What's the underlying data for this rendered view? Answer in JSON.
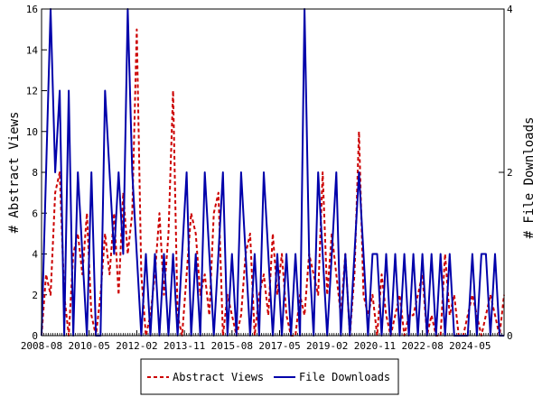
{
  "chart_data": {
    "type": "line",
    "grid": false,
    "legend_placement": "bottom-center",
    "x_range": [
      "2008-08",
      "2025-08"
    ],
    "x_ticks": [
      "2008-08",
      "2010-05",
      "2012-02",
      "2013-11",
      "2015-08",
      "2017-05",
      "2019-02",
      "2020-11",
      "2022-08",
      "2024-05"
    ],
    "ylabel": "# Abstract Views",
    "y2label": "# File Downloads",
    "ylim": [
      0,
      16
    ],
    "y2lim": [
      0,
      4
    ],
    "y_ticks": [
      0,
      2,
      4,
      6,
      8,
      10,
      12,
      14,
      16
    ],
    "y2_ticks": [
      0,
      2,
      4
    ],
    "series": [
      {
        "name": "Abstract Views",
        "axis": "left",
        "color": "#cc0000",
        "style": "dashed",
        "x": [
          "2008-08",
          "2008-10",
          "2008-12",
          "2009-02",
          "2009-04",
          "2009-06",
          "2009-08",
          "2009-10",
          "2009-12",
          "2010-02",
          "2010-04",
          "2010-06",
          "2010-08",
          "2010-10",
          "2010-12",
          "2011-02",
          "2011-04",
          "2011-06",
          "2011-08",
          "2011-10",
          "2011-12",
          "2012-02",
          "2012-04",
          "2012-06",
          "2012-08",
          "2012-10",
          "2012-12",
          "2013-02",
          "2013-04",
          "2013-06",
          "2013-08",
          "2013-10",
          "2013-12",
          "2014-02",
          "2014-04",
          "2014-06",
          "2014-08",
          "2014-10",
          "2014-12",
          "2015-02",
          "2015-04",
          "2015-06",
          "2015-08",
          "2015-10",
          "2015-12",
          "2016-02",
          "2016-04",
          "2016-06",
          "2016-08",
          "2016-10",
          "2016-12",
          "2017-02",
          "2017-04",
          "2017-06",
          "2017-08",
          "2017-10",
          "2017-12",
          "2018-02",
          "2018-04",
          "2018-06",
          "2018-08",
          "2018-10",
          "2018-12",
          "2019-02",
          "2019-04",
          "2019-06",
          "2019-08",
          "2019-10",
          "2019-12",
          "2020-02",
          "2020-04",
          "2020-06",
          "2020-08",
          "2020-10",
          "2020-12",
          "2021-02",
          "2021-04",
          "2021-06",
          "2021-08",
          "2021-10",
          "2021-12",
          "2022-02",
          "2022-04",
          "2022-06",
          "2022-08",
          "2022-10",
          "2022-12",
          "2023-02",
          "2023-04",
          "2023-06",
          "2023-08",
          "2023-10",
          "2023-12",
          "2024-02",
          "2024-04",
          "2024-06",
          "2024-08",
          "2024-10",
          "2024-12",
          "2025-02",
          "2025-04",
          "2025-06",
          "2025-08"
        ],
        "values": [
          0,
          3,
          2,
          7,
          8,
          2,
          0,
          4,
          5,
          3,
          6,
          1,
          0,
          2,
          5,
          3,
          6,
          2,
          7,
          4,
          6,
          15,
          3,
          0,
          1,
          3,
          6,
          2,
          5,
          12,
          1,
          0,
          3,
          6,
          5,
          2,
          3,
          1,
          6,
          7,
          0,
          2,
          1,
          0,
          1,
          4,
          5,
          0,
          2,
          3,
          1,
          5,
          2,
          4,
          1,
          0,
          0,
          2,
          1,
          4,
          3,
          2,
          8,
          2,
          5,
          3,
          1,
          4,
          0,
          3,
          10,
          2,
          1,
          2,
          0,
          3,
          1,
          0,
          1,
          2,
          0,
          1,
          1,
          2,
          3,
          0,
          1,
          0,
          0,
          4,
          1,
          2,
          0,
          0,
          1,
          2,
          1,
          0,
          1,
          2,
          1,
          0,
          2
        ]
      },
      {
        "name": "File Downloads",
        "axis": "right",
        "color": "#0000aa",
        "style": "solid",
        "x": [
          "2008-08",
          "2008-10",
          "2008-12",
          "2009-02",
          "2009-04",
          "2009-06",
          "2009-08",
          "2009-10",
          "2009-12",
          "2010-02",
          "2010-04",
          "2010-06",
          "2010-08",
          "2010-10",
          "2010-12",
          "2011-02",
          "2011-04",
          "2011-06",
          "2011-08",
          "2011-10",
          "2011-12",
          "2012-02",
          "2012-04",
          "2012-06",
          "2012-08",
          "2012-10",
          "2012-12",
          "2013-02",
          "2013-04",
          "2013-06",
          "2013-08",
          "2013-10",
          "2013-12",
          "2014-02",
          "2014-04",
          "2014-06",
          "2014-08",
          "2014-10",
          "2014-12",
          "2015-02",
          "2015-04",
          "2015-06",
          "2015-08",
          "2015-10",
          "2015-12",
          "2016-02",
          "2016-04",
          "2016-06",
          "2016-08",
          "2016-10",
          "2016-12",
          "2017-02",
          "2017-04",
          "2017-06",
          "2017-08",
          "2017-10",
          "2017-12",
          "2018-02",
          "2018-04",
          "2018-06",
          "2018-08",
          "2018-10",
          "2018-12",
          "2019-02",
          "2019-04",
          "2019-06",
          "2019-08",
          "2019-10",
          "2019-12",
          "2020-02",
          "2020-04",
          "2020-06",
          "2020-08",
          "2020-10",
          "2020-12",
          "2021-02",
          "2021-04",
          "2021-06",
          "2021-08",
          "2021-10",
          "2021-12",
          "2022-02",
          "2022-04",
          "2022-06",
          "2022-08",
          "2022-10",
          "2022-12",
          "2023-02",
          "2023-04",
          "2023-06",
          "2023-08",
          "2023-10",
          "2023-12",
          "2024-02",
          "2024-04",
          "2024-06",
          "2024-08",
          "2024-10",
          "2024-12",
          "2025-02",
          "2025-04",
          "2025-06",
          "2025-08"
        ],
        "values": [
          0,
          2,
          4,
          2,
          3,
          0,
          3,
          0,
          2,
          1,
          0,
          2,
          0,
          0,
          3,
          2,
          1,
          2,
          1,
          4,
          2,
          1,
          0,
          1,
          0,
          1,
          0,
          1,
          0,
          1,
          0,
          1,
          2,
          0,
          1,
          0,
          2,
          1,
          0,
          1,
          2,
          0,
          1,
          0,
          2,
          1,
          0,
          1,
          0,
          2,
          1,
          0,
          1,
          0,
          1,
          0,
          1,
          0,
          4,
          1,
          0,
          2,
          1,
          0,
          1,
          2,
          0,
          1,
          0,
          1,
          2,
          1,
          0,
          1,
          1,
          0,
          1,
          0,
          1,
          0,
          1,
          0,
          1,
          0,
          1,
          0,
          1,
          0,
          1,
          0,
          1,
          0,
          0,
          0,
          0,
          1,
          0,
          1,
          1,
          0,
          1,
          0,
          0
        ]
      }
    ]
  }
}
